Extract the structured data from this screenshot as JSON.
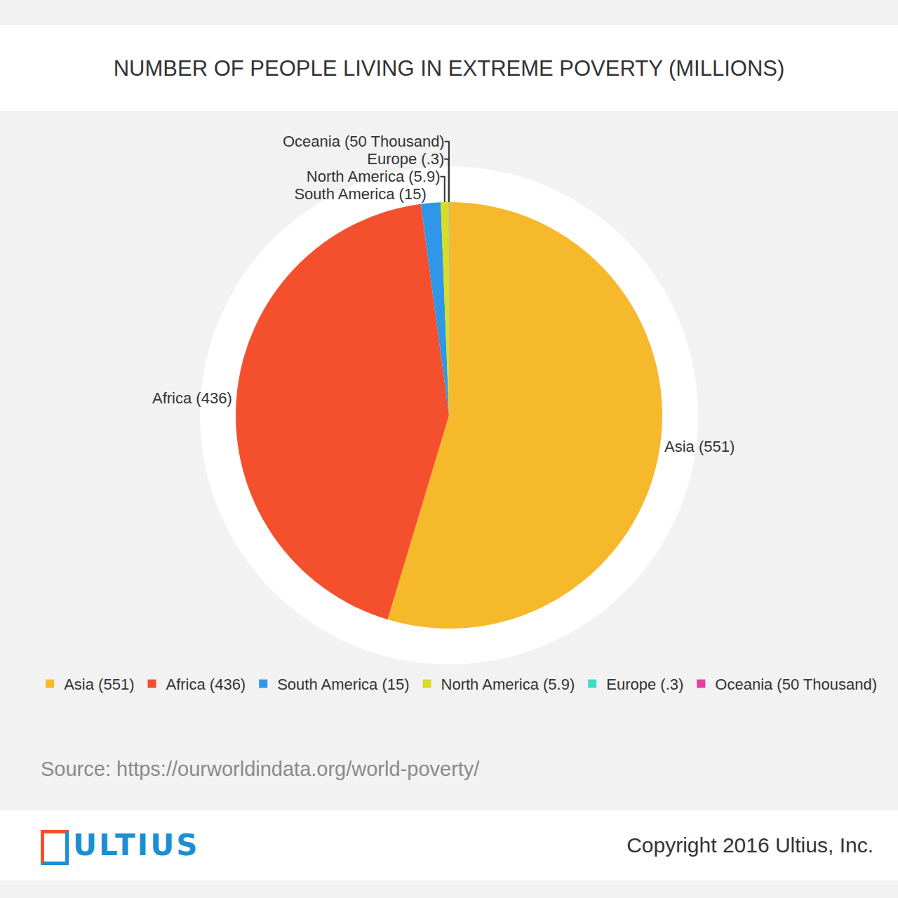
{
  "chart_data": {
    "type": "pie",
    "title": "NUMBER OF PEOPLE LIVING IN EXTREME POVERTY (MILLIONS)",
    "categories": [
      "Asia (551)",
      "Africa (436)",
      "South America (15)",
      "North America (5.9)",
      "Europe (.3)",
      "Oceania (50 Thousand)"
    ],
    "values": [
      551,
      436,
      15,
      5.9,
      0.3,
      0.05
    ],
    "colors": [
      "#f6b92b",
      "#f5502d",
      "#2f96e8",
      "#d6dd24",
      "#3edcc4",
      "#e73ea0"
    ],
    "legend": "bottom"
  },
  "source": "Source: https://ourworldindata.org/world-poverty/",
  "footer": {
    "logo": "ULTIUS",
    "copyright": "Copyright 2016 Ultius, Inc."
  }
}
